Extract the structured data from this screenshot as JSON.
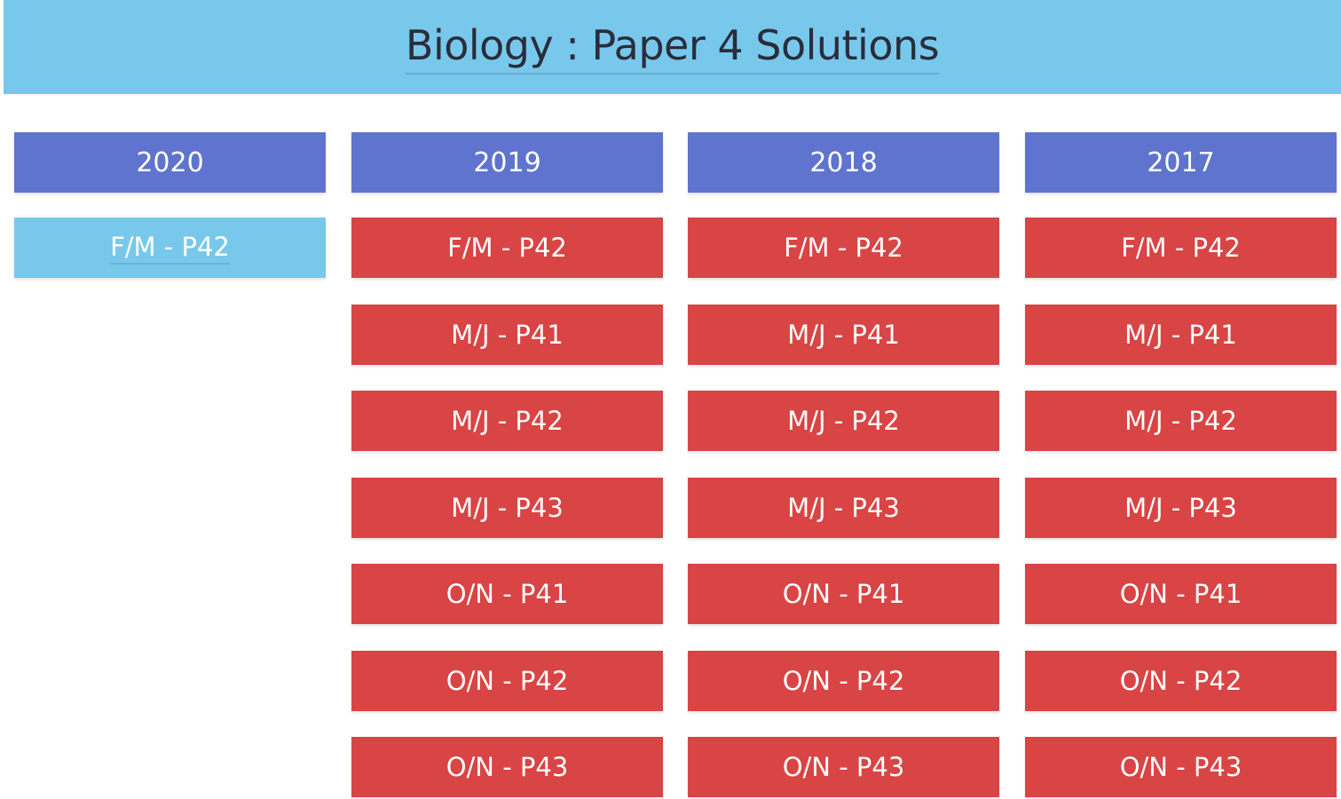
{
  "header": {
    "title": "Biology : Paper 4 Solutions"
  },
  "colors": {
    "header_bg": "#78c8ec",
    "year_button": "#5f74cf",
    "paper_button": "#d94444",
    "current_paper_button": "#78c8ec",
    "button_text": "#ffffff"
  },
  "columns": [
    {
      "year": "2020",
      "papers": [
        {
          "label": "F/M - P42",
          "state": "current"
        }
      ]
    },
    {
      "year": "2019",
      "papers": [
        {
          "label": "F/M - P42",
          "state": "default"
        },
        {
          "label": "M/J - P41",
          "state": "default"
        },
        {
          "label": "M/J - P42",
          "state": "default"
        },
        {
          "label": "M/J - P43",
          "state": "default"
        },
        {
          "label": "O/N - P41",
          "state": "default"
        },
        {
          "label": "O/N - P42",
          "state": "default"
        },
        {
          "label": "O/N - P43",
          "state": "default"
        }
      ]
    },
    {
      "year": "2018",
      "papers": [
        {
          "label": "F/M - P42",
          "state": "default"
        },
        {
          "label": "M/J - P41",
          "state": "default"
        },
        {
          "label": "M/J - P42",
          "state": "default"
        },
        {
          "label": "M/J - P43",
          "state": "default"
        },
        {
          "label": "O/N - P41",
          "state": "default"
        },
        {
          "label": "O/N - P42",
          "state": "default"
        },
        {
          "label": "O/N - P43",
          "state": "default"
        }
      ]
    },
    {
      "year": "2017",
      "papers": [
        {
          "label": "F/M - P42",
          "state": "default"
        },
        {
          "label": "M/J - P41",
          "state": "default"
        },
        {
          "label": "M/J - P42",
          "state": "default"
        },
        {
          "label": "M/J - P43",
          "state": "default"
        },
        {
          "label": "O/N - P41",
          "state": "default"
        },
        {
          "label": "O/N - P42",
          "state": "default"
        },
        {
          "label": "O/N - P43",
          "state": "default"
        }
      ]
    }
  ]
}
